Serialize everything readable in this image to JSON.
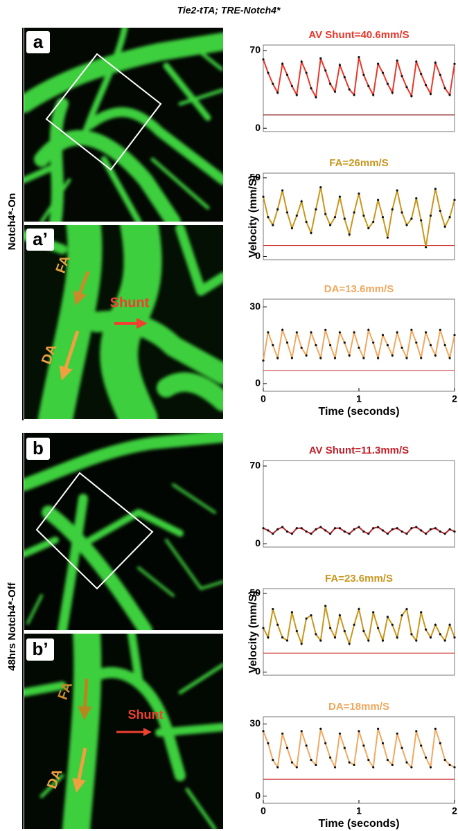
{
  "figure": {
    "title": "Tie2-tTA; TRE-Notch4*",
    "row_labels": [
      "Notch4*-On",
      "48hrs Notch4*-Off"
    ],
    "panels": [
      {
        "label": "a"
      },
      {
        "label": "a’",
        "annotations": [
          "FA",
          "DA",
          "Shunt"
        ]
      },
      {
        "label": "b"
      },
      {
        "label": "b’",
        "annotations": [
          "FA",
          "DA",
          "Shunt"
        ]
      }
    ]
  },
  "chart_data": [
    {
      "type": "line",
      "title": "AV Shunt=40.6mm/S",
      "xlim": [
        0,
        2
      ],
      "ylim": [
        -3,
        75
      ],
      "yticks": [
        0,
        70
      ],
      "x": [
        0,
        0.05,
        0.1,
        0.15,
        0.2,
        0.25,
        0.3,
        0.35,
        0.4,
        0.45,
        0.5,
        0.55,
        0.6,
        0.65,
        0.7,
        0.75,
        0.8,
        0.85,
        0.9,
        0.95,
        1,
        1.05,
        1.1,
        1.15,
        1.2,
        1.25,
        1.3,
        1.35,
        1.4,
        1.45,
        1.5,
        1.55,
        1.6,
        1.65,
        1.7,
        1.75,
        1.8,
        1.85,
        1.9,
        1.95,
        2
      ],
      "series": [
        {
          "color": "#e8372a",
          "values": [
            62,
            50,
            40,
            32,
            58,
            48,
            38,
            30,
            60,
            50,
            36,
            28,
            63,
            52,
            40,
            33,
            57,
            46,
            35,
            30,
            64,
            48,
            38,
            30,
            58,
            50,
            40,
            32,
            61,
            47,
            37,
            29,
            60,
            49,
            39,
            31,
            59,
            48,
            36,
            30,
            58
          ]
        }
      ],
      "hline": {
        "value": 12,
        "color": "#8b1a1a"
      }
    },
    {
      "type": "line",
      "title": "FA=26mm/S",
      "ylabel": "Velocity (mm/S)",
      "xlim": [
        0,
        2
      ],
      "ylim": [
        -2,
        53
      ],
      "yticks": [
        0,
        50
      ],
      "x": [
        0,
        0.05,
        0.1,
        0.15,
        0.2,
        0.25,
        0.3,
        0.35,
        0.4,
        0.45,
        0.5,
        0.55,
        0.6,
        0.65,
        0.7,
        0.75,
        0.8,
        0.85,
        0.9,
        0.95,
        1,
        1.05,
        1.1,
        1.15,
        1.2,
        1.25,
        1.3,
        1.35,
        1.4,
        1.45,
        1.5,
        1.55,
        1.6,
        1.65,
        1.7,
        1.75,
        1.8,
        1.85,
        1.9,
        1.95,
        2
      ],
      "series": [
        {
          "color": "#c8961e",
          "values": [
            38,
            25,
            20,
            30,
            42,
            28,
            18,
            26,
            35,
            22,
            15,
            30,
            44,
            27,
            20,
            25,
            38,
            24,
            14,
            28,
            40,
            26,
            18,
            22,
            36,
            25,
            12,
            30,
            42,
            28,
            20,
            24,
            37,
            23,
            6,
            26,
            43,
            29,
            19,
            25,
            36
          ]
        }
      ],
      "hline": {
        "value": 7,
        "color": "#d04040"
      }
    },
    {
      "type": "line",
      "title": "DA=13.6mm/S",
      "xlabel": "Time (seconds)",
      "xlim": [
        0,
        2
      ],
      "xticks": [
        0,
        1,
        2
      ],
      "ylim": [
        -3,
        33
      ],
      "yticks": [
        0,
        30
      ],
      "x": [
        0,
        0.05,
        0.1,
        0.15,
        0.2,
        0.25,
        0.3,
        0.35,
        0.4,
        0.45,
        0.5,
        0.55,
        0.6,
        0.65,
        0.7,
        0.75,
        0.8,
        0.85,
        0.9,
        0.95,
        1,
        1.05,
        1.1,
        1.15,
        1.2,
        1.25,
        1.3,
        1.35,
        1.4,
        1.45,
        1.5,
        1.55,
        1.6,
        1.65,
        1.7,
        1.75,
        1.8,
        1.85,
        1.9,
        1.95,
        2
      ],
      "series": [
        {
          "color": "#f0a860",
          "values": [
            9,
            20,
            15,
            10,
            21,
            16,
            10,
            20,
            14,
            11,
            20,
            15,
            10,
            21,
            15,
            10,
            20,
            16,
            11,
            20,
            14,
            10,
            21,
            16,
            10,
            19,
            15,
            11,
            20,
            14,
            10,
            21,
            16,
            10,
            20,
            15,
            11,
            21,
            15,
            10,
            19
          ]
        }
      ],
      "hline": {
        "value": 5,
        "color": "#d04040"
      }
    },
    {
      "type": "line",
      "title": "AV Shunt=11.3mm/S",
      "xlim": [
        0,
        2
      ],
      "ylim": [
        -3,
        75
      ],
      "yticks": [
        0,
        70
      ],
      "x": [
        0,
        0.05,
        0.1,
        0.15,
        0.2,
        0.25,
        0.3,
        0.35,
        0.4,
        0.45,
        0.5,
        0.55,
        0.6,
        0.65,
        0.7,
        0.75,
        0.8,
        0.85,
        0.9,
        0.95,
        1,
        1.05,
        1.1,
        1.15,
        1.2,
        1.25,
        1.3,
        1.35,
        1.4,
        1.45,
        1.5,
        1.55,
        1.6,
        1.65,
        1.7,
        1.75,
        1.8,
        1.85,
        1.9,
        1.95,
        2
      ],
      "series": [
        {
          "color": "#c0202a",
          "values": [
            14,
            12,
            9,
            13,
            15,
            11,
            9,
            14,
            14,
            11,
            9,
            13,
            15,
            12,
            9,
            14,
            14,
            11,
            9,
            13,
            15,
            11,
            9,
            14,
            15,
            12,
            9,
            13,
            14,
            11,
            9,
            14,
            15,
            12,
            9,
            13,
            14,
            11,
            9,
            13,
            11
          ]
        }
      ]
    },
    {
      "type": "line",
      "title": "FA=23.6mm/S",
      "ylabel": "Velocity (mm/S)",
      "xlim": [
        0,
        2
      ],
      "ylim": [
        -2,
        53
      ],
      "yticks": [
        0,
        50
      ],
      "x": [
        0,
        0.05,
        0.1,
        0.15,
        0.2,
        0.25,
        0.3,
        0.35,
        0.4,
        0.45,
        0.5,
        0.55,
        0.6,
        0.65,
        0.7,
        0.75,
        0.8,
        0.85,
        0.9,
        0.95,
        1,
        1.05,
        1.1,
        1.15,
        1.2,
        1.25,
        1.3,
        1.35,
        1.4,
        1.45,
        1.5,
        1.55,
        1.6,
        1.65,
        1.7,
        1.75,
        1.8,
        1.85,
        1.9,
        1.95,
        2
      ],
      "series": [
        {
          "color": "#c8961e",
          "values": [
            28,
            22,
            40,
            30,
            22,
            20,
            38,
            26,
            18,
            34,
            36,
            24,
            20,
            42,
            28,
            22,
            36,
            26,
            18,
            30,
            40,
            26,
            20,
            38,
            28,
            20,
            35,
            30,
            22,
            36,
            40,
            24,
            20,
            38,
            27,
            22,
            30,
            24,
            20,
            30,
            22
          ]
        }
      ],
      "hline": {
        "value": 12,
        "color": "#d04040"
      }
    },
    {
      "type": "line",
      "title": "DA=18mm/S",
      "xlabel": "Time (seconds)",
      "xlim": [
        0,
        2
      ],
      "xticks": [
        0,
        1,
        2
      ],
      "ylim": [
        -3,
        33
      ],
      "yticks": [
        0,
        30
      ],
      "x": [
        0,
        0.05,
        0.1,
        0.15,
        0.2,
        0.25,
        0.3,
        0.35,
        0.4,
        0.45,
        0.5,
        0.55,
        0.6,
        0.65,
        0.7,
        0.75,
        0.8,
        0.85,
        0.9,
        0.95,
        1,
        1.05,
        1.1,
        1.15,
        1.2,
        1.25,
        1.3,
        1.35,
        1.4,
        1.45,
        1.5,
        1.55,
        1.6,
        1.65,
        1.7,
        1.75,
        1.8,
        1.85,
        1.9,
        1.95,
        2
      ],
      "series": [
        {
          "color": "#f0a860",
          "values": [
            27,
            22,
            15,
            12,
            26,
            20,
            14,
            12,
            27,
            21,
            15,
            13,
            28,
            22,
            16,
            12,
            26,
            20,
            14,
            13,
            27,
            21,
            15,
            12,
            28,
            22,
            15,
            13,
            26,
            20,
            14,
            12,
            27,
            21,
            16,
            12,
            28,
            22,
            15,
            13,
            12
          ]
        }
      ],
      "hline": {
        "value": 7,
        "color": "#d04040"
      }
    }
  ]
}
